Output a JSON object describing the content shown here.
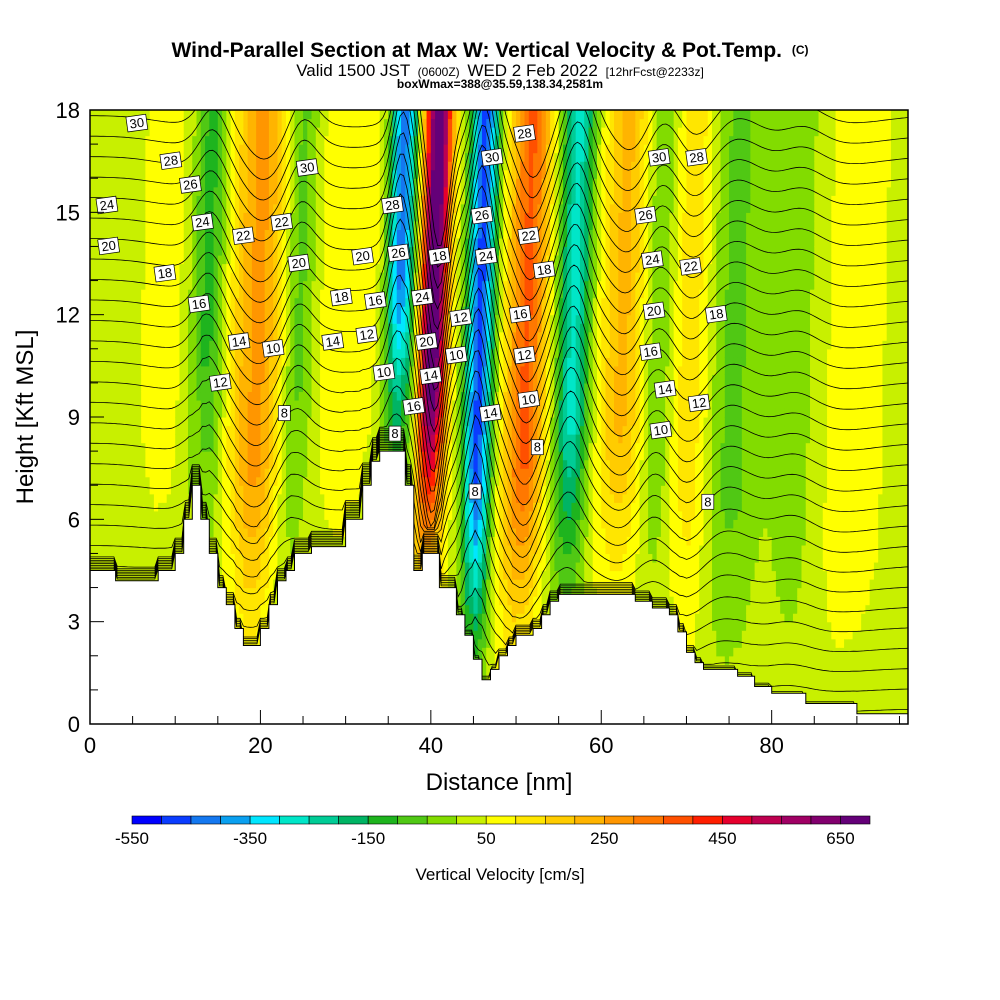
{
  "header": {
    "title_main": "Wind-Parallel Section at Max W: Vertical Velocity & Pot.Temp.",
    "title_copyright": "(C)",
    "valid_prefix": "Valid 1500 JST",
    "valid_utc": "(0600Z)",
    "valid_date": "WED 2 Feb 2022",
    "forecast": "[12hrFcst@2233z]",
    "boxinfo": "boxWmax=388@35.59,138.34,2581m"
  },
  "chart_data": {
    "type": "heatmap",
    "xlabel": "Distance [nm]",
    "ylabel": "Height [Kft MSL]",
    "xlim": [
      0,
      96
    ],
    "ylim": [
      0,
      18
    ],
    "x_ticks": [
      0,
      20,
      40,
      60,
      80
    ],
    "y_ticks": [
      0,
      3,
      6,
      9,
      12,
      15,
      18
    ],
    "terrain": {
      "x": [
        0,
        3,
        3,
        8,
        8,
        10,
        10,
        11,
        11,
        12,
        12,
        13,
        13,
        14,
        14,
        15,
        15,
        16,
        16,
        17,
        17,
        18,
        18,
        20,
        20,
        21,
        21,
        22,
        22,
        23,
        23,
        24,
        24,
        26,
        26,
        30,
        30,
        32,
        32,
        33,
        33,
        34,
        34,
        35,
        35,
        37,
        37,
        38,
        38,
        39,
        39,
        41,
        41,
        43,
        43,
        44,
        44,
        45,
        45,
        46,
        46,
        47,
        47,
        48,
        48,
        49,
        49,
        50,
        50,
        51,
        51,
        52,
        52,
        53,
        53,
        54,
        54,
        55,
        55,
        56,
        56,
        58,
        58,
        60,
        60,
        62,
        62,
        64,
        64,
        66,
        66,
        68,
        68,
        69,
        69,
        70,
        70,
        71,
        71,
        72,
        72,
        73,
        73,
        74,
        74,
        75,
        75,
        76,
        76,
        78,
        78,
        80,
        80,
        82,
        82,
        84,
        84,
        86,
        86,
        90,
        90,
        96
      ],
      "y": [
        4.5,
        4.5,
        4.2,
        4.2,
        4.5,
        4.5,
        5,
        5,
        6,
        6,
        7,
        7,
        6,
        6,
        5,
        5,
        4,
        4,
        3.5,
        3.5,
        2.8,
        2.8,
        2.3,
        2.3,
        2.8,
        2.8,
        3.5,
        3.5,
        4.2,
        4.2,
        4.5,
        4.5,
        5,
        5,
        5.2,
        5.2,
        6,
        6,
        7,
        7,
        7.7,
        7.7,
        8,
        8,
        8,
        8,
        7,
        7,
        4.5,
        4.5,
        5,
        5,
        4,
        4,
        3.2,
        3.2,
        2.6,
        2.6,
        1.9,
        1.9,
        1.3,
        1.3,
        1.6,
        1.6,
        2,
        2,
        2.3,
        2.3,
        2.6,
        2.6,
        2.6,
        2.6,
        2.8,
        2.8,
        3.2,
        3.2,
        3.6,
        3.6,
        3.8,
        3.8,
        3.8,
        3.8,
        3.8,
        3.8,
        3.8,
        3.8,
        3.8,
        3.8,
        3.6,
        3.6,
        3.4,
        3.4,
        3.2,
        3.2,
        2.7,
        2.7,
        2.1,
        2.1,
        1.8,
        1.8,
        1.6,
        1.6,
        1.6,
        1.6,
        1.6,
        1.6,
        1.6,
        1.6,
        1.4,
        1.4,
        1.1,
        1.1,
        0.9,
        0.9,
        0.9,
        0.9,
        0.6,
        0.6,
        0.6,
        0.6,
        0.3,
        0.3
      ]
    },
    "updrafts": [
      {
        "x": 40,
        "w": 1.6,
        "amp": 700
      },
      {
        "x": 51,
        "w": 2.4,
        "amp": 330
      },
      {
        "x": 19.5,
        "w": 3.5,
        "amp": 230
      },
      {
        "x": 62.5,
        "w": 3.0,
        "amp": 190
      },
      {
        "x": 70,
        "w": 3.0,
        "amp": 130
      },
      {
        "x": 30,
        "w": 6.0,
        "amp": 60
      },
      {
        "x": 10,
        "w": 5.0,
        "amp": 40
      },
      {
        "x": 88,
        "w": 6.0,
        "amp": 40
      }
    ],
    "downdrafts": [
      {
        "x": 36,
        "w": 1.6,
        "amp": -480
      },
      {
        "x": 45.5,
        "w": 1.6,
        "amp": -500
      },
      {
        "x": 56.5,
        "w": 2.0,
        "amp": -300
      },
      {
        "x": 13.5,
        "w": 2.2,
        "amp": -180
      },
      {
        "x": 24,
        "w": 2.2,
        "amp": -150
      },
      {
        "x": 66.5,
        "w": 2.5,
        "amp": -130
      },
      {
        "x": 75,
        "w": 3.5,
        "amp": -100
      },
      {
        "x": 83,
        "w": 3.0,
        "amp": -70
      }
    ],
    "theta_levels": [
      8,
      10,
      12,
      14,
      16,
      18,
      20,
      22,
      24,
      26,
      28,
      30
    ],
    "contour_labels": [
      {
        "x": 5.5,
        "y": 17.6,
        "text": "30"
      },
      {
        "x": 9.5,
        "y": 16.5,
        "text": "28"
      },
      {
        "x": 11.8,
        "y": 15.8,
        "text": "26"
      },
      {
        "x": 2,
        "y": 15.2,
        "text": "24"
      },
      {
        "x": 13.2,
        "y": 14.7,
        "text": "24"
      },
      {
        "x": 2.2,
        "y": 14,
        "text": "20"
      },
      {
        "x": 18,
        "y": 14.3,
        "text": "22"
      },
      {
        "x": 22.5,
        "y": 14.7,
        "text": "22"
      },
      {
        "x": 8.8,
        "y": 13.2,
        "text": "18"
      },
      {
        "x": 12.8,
        "y": 12.3,
        "text": "16"
      },
      {
        "x": 17.5,
        "y": 11.2,
        "text": "14"
      },
      {
        "x": 15.3,
        "y": 10,
        "text": "12"
      },
      {
        "x": 21.5,
        "y": 11,
        "text": "10"
      },
      {
        "x": 22.8,
        "y": 9.1,
        "text": "8"
      },
      {
        "x": 25.5,
        "y": 16.3,
        "text": "30"
      },
      {
        "x": 24.5,
        "y": 13.5,
        "text": "20"
      },
      {
        "x": 32,
        "y": 13.7,
        "text": "20"
      },
      {
        "x": 29.5,
        "y": 12.5,
        "text": "18"
      },
      {
        "x": 33.5,
        "y": 12.4,
        "text": "16"
      },
      {
        "x": 28.5,
        "y": 11.2,
        "text": "14"
      },
      {
        "x": 32.5,
        "y": 11.4,
        "text": "12"
      },
      {
        "x": 35.5,
        "y": 15.2,
        "text": "28"
      },
      {
        "x": 36.2,
        "y": 13.8,
        "text": "26"
      },
      {
        "x": 39,
        "y": 12.5,
        "text": "24"
      },
      {
        "x": 39.5,
        "y": 11.2,
        "text": "20"
      },
      {
        "x": 41,
        "y": 13.7,
        "text": "18"
      },
      {
        "x": 34.5,
        "y": 10.3,
        "text": "10"
      },
      {
        "x": 40,
        "y": 10.2,
        "text": "14"
      },
      {
        "x": 38,
        "y": 9.3,
        "text": "16"
      },
      {
        "x": 35.8,
        "y": 8.5,
        "text": "8"
      },
      {
        "x": 47.2,
        "y": 16.6,
        "text": "30"
      },
      {
        "x": 51,
        "y": 17.3,
        "text": "28"
      },
      {
        "x": 46,
        "y": 14.9,
        "text": "26"
      },
      {
        "x": 46.5,
        "y": 13.7,
        "text": "24"
      },
      {
        "x": 51.5,
        "y": 14.3,
        "text": "22"
      },
      {
        "x": 43.5,
        "y": 11.9,
        "text": "12"
      },
      {
        "x": 50.5,
        "y": 12,
        "text": "16"
      },
      {
        "x": 43,
        "y": 10.8,
        "text": "10"
      },
      {
        "x": 51,
        "y": 10.8,
        "text": "12"
      },
      {
        "x": 47,
        "y": 9.1,
        "text": "14"
      },
      {
        "x": 51.5,
        "y": 9.5,
        "text": "10"
      },
      {
        "x": 53.3,
        "y": 13.3,
        "text": "18"
      },
      {
        "x": 52.5,
        "y": 8.1,
        "text": "8"
      },
      {
        "x": 45.2,
        "y": 6.8,
        "text": "8"
      },
      {
        "x": 66.8,
        "y": 16.6,
        "text": "30"
      },
      {
        "x": 71.2,
        "y": 16.6,
        "text": "28"
      },
      {
        "x": 65.2,
        "y": 14.9,
        "text": "26"
      },
      {
        "x": 66,
        "y": 13.6,
        "text": "24"
      },
      {
        "x": 70.5,
        "y": 13.4,
        "text": "22"
      },
      {
        "x": 73.5,
        "y": 12,
        "text": "18"
      },
      {
        "x": 66.2,
        "y": 12.1,
        "text": "20"
      },
      {
        "x": 65.8,
        "y": 10.9,
        "text": "16"
      },
      {
        "x": 67.5,
        "y": 9.8,
        "text": "14"
      },
      {
        "x": 71.5,
        "y": 9.4,
        "text": "12"
      },
      {
        "x": 67,
        "y": 8.6,
        "text": "10"
      },
      {
        "x": 72.5,
        "y": 6.5,
        "text": "8"
      }
    ],
    "colorbar": {
      "title": "Vertical Velocity [cm/s]",
      "boundaries": [
        -550,
        -500,
        -450,
        -400,
        -350,
        -300,
        -250,
        -200,
        -150,
        -100,
        -50,
        0,
        50,
        100,
        150,
        200,
        250,
        300,
        350,
        400,
        450,
        500,
        550,
        600,
        650,
        700
      ],
      "tick_values": [
        -550,
        -350,
        -150,
        50,
        250,
        450,
        650
      ],
      "tick_labels": [
        "-550",
        "-350",
        "-150",
        "50",
        "250",
        "450",
        "650"
      ],
      "colors": [
        "#0000ff",
        "#0a3cff",
        "#1478f0",
        "#0aa0f0",
        "#00e6ff",
        "#00e6c8",
        "#00cc96",
        "#00b464",
        "#1eb41e",
        "#50c814",
        "#82dc00",
        "#c8f000",
        "#ffff00",
        "#ffe600",
        "#ffcc00",
        "#ffb400",
        "#ff9600",
        "#ff7800",
        "#ff5000",
        "#ff1e00",
        "#e6002d",
        "#be0050",
        "#a00064",
        "#82006e",
        "#640078"
      ]
    }
  }
}
